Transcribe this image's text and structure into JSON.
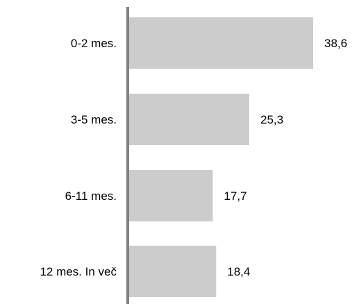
{
  "chart_data": {
    "type": "bar",
    "orientation": "horizontal",
    "categories": [
      "0-2 mes.",
      "3-5 mes.",
      "6-11 mes.",
      "12 mes. In več"
    ],
    "values": [
      38.6,
      25.3,
      17.7,
      18.4
    ],
    "value_labels": [
      "38,6",
      "25,3",
      "17,7",
      "18,4"
    ],
    "title": "",
    "xlabel": "",
    "ylabel": "",
    "xlim": [
      0,
      38.6
    ],
    "grid": false,
    "legend": "none",
    "colors": {
      "bar": "#cccccc",
      "axis": "#808080",
      "text": "#000000"
    }
  }
}
